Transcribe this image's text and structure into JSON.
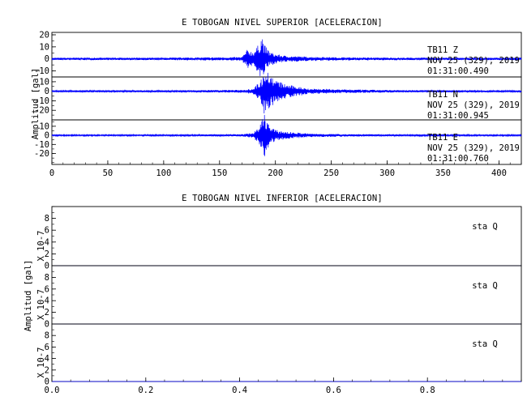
{
  "chart_data": [
    {
      "type": "line",
      "title": "E TOBOGAN NIVEL SUPERIOR [ACELERACION]",
      "ylabel": "Amplitud [gal]",
      "xlabel": "",
      "xlim": [
        0,
        420
      ],
      "x_ticks": [
        0,
        50,
        100,
        150,
        200,
        250,
        300,
        350,
        400
      ],
      "grid": false,
      "panels": [
        {
          "station": "TB11",
          "component": "Z",
          "date": "NOV 25 (329), 2019",
          "time": "01:31:00.490",
          "ylim": [
            -15,
            22
          ],
          "y_ticks": [
            20,
            10,
            0,
            -10
          ],
          "color": "#0000ff",
          "series": [
            {
              "x": [
                0,
                100,
                170,
                175,
                180,
                185,
                188,
                190,
                195,
                200,
                210,
                230,
                260,
                300,
                350,
                420
              ],
              "values": [
                1,
                1,
                1.5,
                8,
                6,
                12,
                21,
                12,
                6,
                4,
                2.5,
                1.8,
                1.3,
                1.1,
                1,
                1
              ]
            }
          ]
        },
        {
          "station": "TB11",
          "component": "N",
          "date": "NOV 25 (329), 2019",
          "time": "01:31:00.945",
          "ylim": [
            -30,
            15
          ],
          "y_ticks": [
            10,
            0,
            -10,
            -20
          ],
          "color": "#0000ff",
          "series": [
            {
              "x": [
                0,
                100,
                170,
                180,
                185,
                188,
                190,
                195,
                200,
                210,
                230,
                260,
                300,
                350,
                420
              ],
              "values": [
                1,
                1,
                1.5,
                3,
                9,
                14,
                27,
                18,
                12,
                7,
                3,
                2,
                1.3,
                1.1,
                1
              ]
            }
          ]
        },
        {
          "station": "TB11",
          "component": "E",
          "date": "NOV 25 (329), 2019",
          "time": "01:31:00.760",
          "ylim": [
            -32,
            17
          ],
          "y_ticks": [
            10,
            0,
            -10,
            -20
          ],
          "color": "#0000ff",
          "series": [
            {
              "x": [
                0,
                100,
                170,
                180,
                185,
                188,
                190,
                195,
                200,
                210,
                230,
                260,
                300,
                350,
                420
              ],
              "values": [
                0.8,
                0.8,
                1.2,
                3,
                8,
                17,
                25,
                10,
                6,
                4,
                2,
                1.4,
                1,
                0.9,
                0.8
              ]
            }
          ]
        }
      ]
    },
    {
      "type": "line",
      "title": "E TOBOGAN NIVEL INFERIOR [ACELERACION]",
      "ylabel": "Amplitud [gal]",
      "xlabel": "",
      "xlim": [
        0,
        1
      ],
      "x_ticks": [
        "0.0",
        "0.2",
        "0.4",
        "0.6",
        "0.8"
      ],
      "scale_label": "X 10-7",
      "grid": false,
      "panels": [
        {
          "station": "sta",
          "component": "Q",
          "ylim": [
            0,
            10
          ],
          "y_ticks": [
            8,
            6,
            4,
            2,
            0
          ],
          "color": "#0000ff",
          "series": [
            {
              "x": [
                0,
                1
              ],
              "values": [
                0,
                0
              ]
            }
          ]
        },
        {
          "station": "sta",
          "component": "Q",
          "ylim": [
            0,
            10
          ],
          "y_ticks": [
            8,
            6,
            4,
            2,
            0
          ],
          "color": "#0000ff",
          "series": [
            {
              "x": [
                0,
                1
              ],
              "values": [
                0,
                0
              ]
            }
          ]
        },
        {
          "station": "sta",
          "component": "Q",
          "ylim": [
            0,
            10
          ],
          "y_ticks": [
            8,
            6,
            4,
            2,
            0
          ],
          "color": "#0000ff",
          "series": [
            {
              "x": [
                0,
                1
              ],
              "values": [
                0,
                0
              ]
            }
          ]
        }
      ]
    }
  ]
}
